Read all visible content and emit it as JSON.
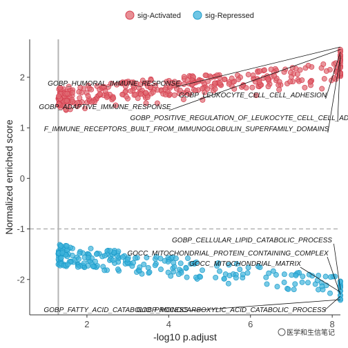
{
  "chart_data": {
    "type": "scatter",
    "xlabel": "-log10 p.adjust",
    "ylabel": "Normalized enriched score",
    "xlim": [
      0.6,
      8.2
    ],
    "ylim": [
      -2.7,
      2.75
    ],
    "x_ticks": [
      2,
      4,
      6,
      8
    ],
    "x_tick_labels": [
      "2",
      "4",
      "6",
      "8"
    ],
    "y_ticks": [
      2,
      1,
      0,
      -1,
      -2
    ],
    "y_tick_labels": [
      "2",
      "1",
      "0",
      "-1",
      "-2"
    ],
    "grid": false,
    "vline_x": 1.3,
    "hline_y": -1,
    "legend_position": "top",
    "series": [
      {
        "name": "sig-Activated",
        "color": "#d53e4f",
        "fill": "#e06a72",
        "x_range": [
          1.3,
          8.2
        ],
        "y_range": [
          1.1,
          2.62
        ]
      },
      {
        "name": "sig-Repressed",
        "color": "#1c9bc9",
        "fill": "#3fb3dc",
        "x_range": [
          1.3,
          8.2
        ],
        "y_range": [
          -2.5,
          -1.2
        ]
      }
    ],
    "annotations": [
      {
        "label": "GOBP_HUMORAL_IMMUNE_RESPONSE",
        "x": 8.2,
        "y": 2.6
      },
      {
        "label": "GOBP_LEUKOCYTE_CELL_CELL_ADHESION",
        "x": 8.2,
        "y": 2.5
      },
      {
        "label": "GOBP_ADAPTIVE_IMMUNE_RESPONSE",
        "x": 8.2,
        "y": 2.55
      },
      {
        "label": "GOBP_POSITIVE_REGULATION_OF_LEUKOCYTE_CELL_CELL_ADHESION",
        "x": 8.2,
        "y": 2.45
      },
      {
        "label": "F_IMMUNE_RECEPTORS_BUILT_FROM_IMMUNOGLOBULIN_SUPERFAMILY_DOMAINS",
        "x": 8.2,
        "y": 2.4
      },
      {
        "label": "GOBP_CELLULAR_LIPID_CATABOLIC_PROCESS",
        "x": 8.2,
        "y": -2.2
      },
      {
        "label": "GOCC_MITOCHONDRIAL_PROTEIN_CONTAINING_COMPLEX",
        "x": 8.2,
        "y": -2.3
      },
      {
        "label": "GOCC_MITOCHONDRIAL_MATRIX",
        "x": 8.2,
        "y": -2.25
      },
      {
        "label": "GOBP_FATTY_ACID_CATABOLIC_PROCESS",
        "x": 8.2,
        "y": -2.4
      },
      {
        "label": "GOBP_MONOCARBOXYLIC_ACID_CATABOLIC_PROCESS",
        "x": 8.2,
        "y": -2.33
      }
    ]
  },
  "watermark": "医学和生信笔记"
}
